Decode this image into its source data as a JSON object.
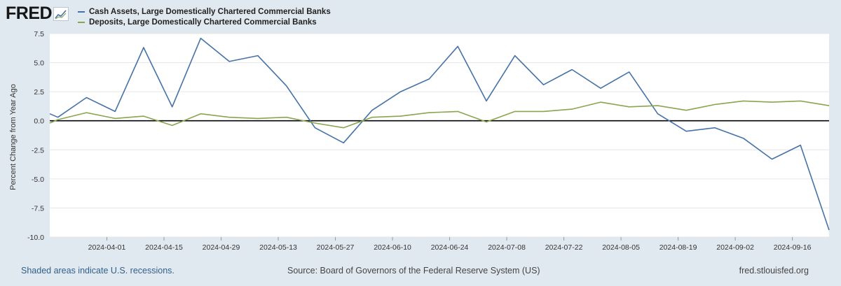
{
  "header": {
    "logo_text": "FRED",
    "logo_icon": "chart-icon"
  },
  "colors": {
    "series_1": "#4572a7",
    "series_2": "#89a54e",
    "zero_line": "#000000",
    "grid": "#e6e6e6",
    "plot_bg": "#ffffff",
    "page_bg": "#e1e9f0"
  },
  "footer": {
    "recession_note": "Shaded areas indicate U.S. recessions.",
    "source": "Source: Board of Governors of the Federal Reserve System (US)",
    "site": "fred.stlouisfed.org"
  },
  "chart_data": {
    "type": "line",
    "title": "",
    "xlabel": "",
    "ylabel": "Percent Change from Year Ago",
    "x": [
      "2024-03-18",
      "2024-03-20",
      "2024-03-27",
      "2024-04-03",
      "2024-04-10",
      "2024-04-17",
      "2024-04-24",
      "2024-05-01",
      "2024-05-08",
      "2024-05-15",
      "2024-05-22",
      "2024-05-29",
      "2024-06-05",
      "2024-06-12",
      "2024-06-19",
      "2024-06-26",
      "2024-07-03",
      "2024-07-10",
      "2024-07-17",
      "2024-07-24",
      "2024-07-31",
      "2024-08-07",
      "2024-08-14",
      "2024-08-21",
      "2024-08-28",
      "2024-09-04",
      "2024-09-11",
      "2024-09-18",
      "2024-09-25"
    ],
    "xlim": [
      "2024-03-18",
      "2024-09-25"
    ],
    "ylim": [
      -10.0,
      7.5
    ],
    "yticks": [
      7.5,
      5.0,
      2.5,
      0.0,
      -2.5,
      -5.0,
      -7.5,
      -10.0
    ],
    "ytick_labels": [
      "7.5",
      "5.0",
      "2.5",
      "0.0",
      "-2.5",
      "-5.0",
      "-7.5",
      "-10.0"
    ],
    "xticks": [
      "2024-04-01",
      "2024-04-15",
      "2024-04-29",
      "2024-05-13",
      "2024-05-27",
      "2024-06-10",
      "2024-06-24",
      "2024-07-08",
      "2024-07-22",
      "2024-08-05",
      "2024-08-19",
      "2024-09-02",
      "2024-09-16"
    ],
    "xtick_labels": [
      "2024-04-01",
      "2024-04-15",
      "2024-04-29",
      "2024-05-13",
      "2024-05-27",
      "2024-06-10",
      "2024-06-24",
      "2024-07-08",
      "2024-07-22",
      "2024-08-05",
      "2024-08-19",
      "2024-09-02",
      "2024-09-16"
    ],
    "reference_line": 0,
    "grid": true,
    "legend_position": "top-left",
    "series": [
      {
        "name": "Cash Assets, Large Domestically Chartered Commercial Banks",
        "values": [
          0.6,
          0.3,
          2.0,
          0.8,
          6.3,
          1.2,
          7.1,
          5.1,
          5.6,
          3.0,
          -0.6,
          -1.9,
          0.9,
          2.5,
          3.6,
          6.4,
          1.7,
          5.6,
          3.1,
          4.4,
          2.8,
          4.2,
          0.6,
          -0.9,
          -0.6,
          -1.5,
          -3.3,
          -2.1,
          -9.4
        ]
      },
      {
        "name": "Deposits, Large Domestically Chartered Commercial Banks",
        "values": [
          -0.2,
          0.1,
          0.7,
          0.2,
          0.4,
          -0.4,
          0.6,
          0.3,
          0.2,
          0.3,
          -0.2,
          -0.6,
          0.3,
          0.4,
          0.7,
          0.8,
          -0.1,
          0.8,
          0.8,
          1.0,
          1.6,
          1.2,
          1.3,
          0.9,
          1.4,
          1.7,
          1.6,
          1.7,
          1.3
        ]
      }
    ]
  }
}
